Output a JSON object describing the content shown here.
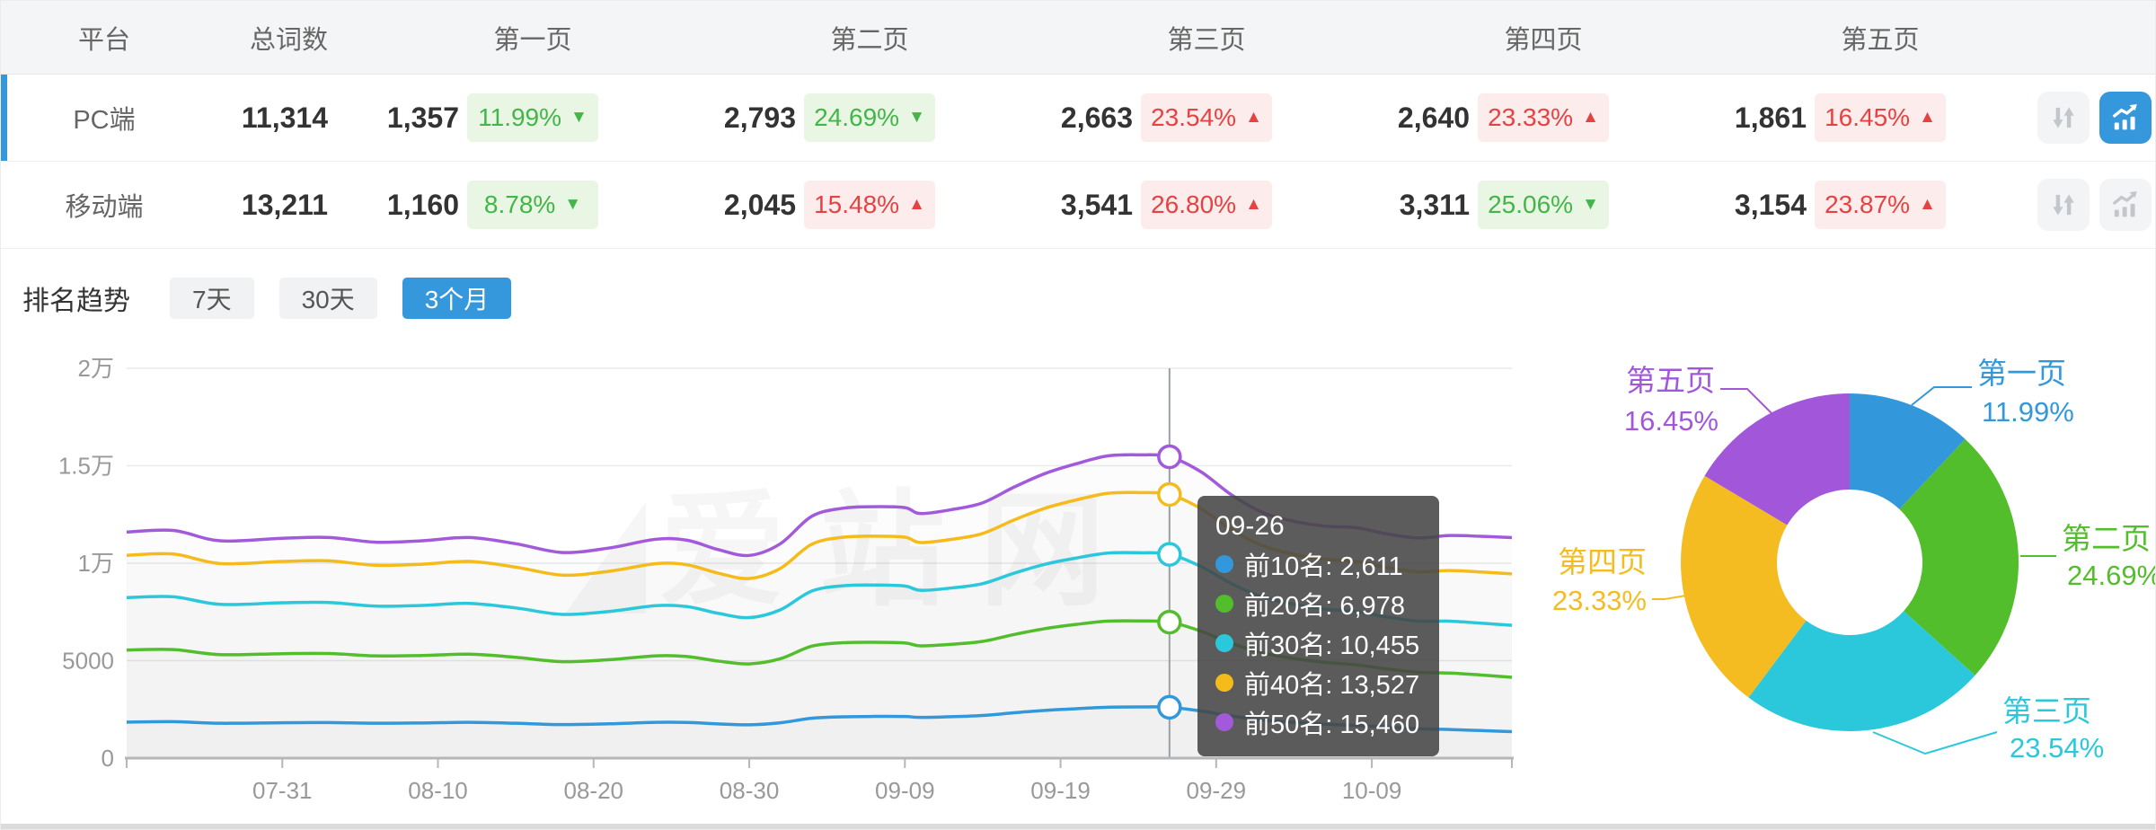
{
  "watermark": "爱站网",
  "table": {
    "headers": {
      "platform": "平台",
      "total": "总词数",
      "pages": [
        "第一页",
        "第二页",
        "第三页",
        "第四页",
        "第五页"
      ]
    },
    "rows": [
      {
        "platform": "PC端",
        "total": "11,314",
        "selected": true,
        "sort_active": false,
        "chart_active": true,
        "pages": [
          {
            "count": "1,357",
            "pct": "11.99%",
            "dir": "down"
          },
          {
            "count": "2,793",
            "pct": "24.69%",
            "dir": "down"
          },
          {
            "count": "2,663",
            "pct": "23.54%",
            "dir": "up"
          },
          {
            "count": "2,640",
            "pct": "23.33%",
            "dir": "up"
          },
          {
            "count": "1,861",
            "pct": "16.45%",
            "dir": "up"
          }
        ]
      },
      {
        "platform": "移动端",
        "total": "13,211",
        "selected": false,
        "sort_active": false,
        "chart_active": false,
        "pages": [
          {
            "count": "1,160",
            "pct": "8.78%",
            "dir": "down"
          },
          {
            "count": "2,045",
            "pct": "15.48%",
            "dir": "up"
          },
          {
            "count": "3,541",
            "pct": "26.80%",
            "dir": "up"
          },
          {
            "count": "3,311",
            "pct": "25.06%",
            "dir": "down"
          },
          {
            "count": "3,154",
            "pct": "23.87%",
            "dir": "up"
          }
        ]
      }
    ]
  },
  "trend": {
    "title": "排名趋势",
    "tabs": [
      {
        "key": "7d",
        "label": "7天",
        "active": false
      },
      {
        "key": "30d",
        "label": "30天",
        "active": false
      },
      {
        "key": "3m",
        "label": "3个月",
        "active": true
      }
    ]
  },
  "chart_data": [
    {
      "type": "line",
      "title": "排名趋势",
      "x": [
        "07-21",
        "07-24",
        "07-27",
        "07-31",
        "08-03",
        "08-06",
        "08-09",
        "08-12",
        "08-15",
        "08-18",
        "08-21",
        "08-24",
        "08-26",
        "08-28",
        "08-30",
        "09-01",
        "09-03",
        "09-05",
        "09-07",
        "09-09",
        "09-10",
        "09-12",
        "09-14",
        "09-16",
        "09-18",
        "09-20",
        "09-22",
        "09-24",
        "09-26",
        "09-28",
        "09-30",
        "10-02",
        "10-04",
        "10-06",
        "10-08",
        "10-10",
        "10-12",
        "10-14",
        "10-16",
        "10-18"
      ],
      "xticks": [
        "07-31",
        "08-10",
        "08-20",
        "08-30",
        "09-09",
        "09-19",
        "09-29",
        "10-09"
      ],
      "ylim": [
        0,
        20000
      ],
      "yticks": [
        {
          "v": 0,
          "label": "0"
        },
        {
          "v": 5000,
          "label": "5000"
        },
        {
          "v": 10000,
          "label": "1万"
        },
        {
          "v": 15000,
          "label": "1.5万"
        },
        {
          "v": 20000,
          "label": "2万"
        }
      ],
      "grid": true,
      "highlight_x": "09-26",
      "series": [
        {
          "key": "top10",
          "name": "前10名",
          "color": "#3398db",
          "values": [
            1850,
            1870,
            1790,
            1815,
            1825,
            1790,
            1805,
            1835,
            1790,
            1720,
            1760,
            1835,
            1830,
            1755,
            1710,
            1815,
            2045,
            2120,
            2140,
            2135,
            2090,
            2125,
            2190,
            2325,
            2450,
            2535,
            2610,
            2625,
            2611,
            2420,
            2160,
            1960,
            1835,
            1745,
            1680,
            1585,
            1505,
            1470,
            1415,
            1357
          ]
        },
        {
          "key": "top20",
          "name": "前20名",
          "color": "#52be2b",
          "values": [
            5545,
            5570,
            5310,
            5360,
            5370,
            5245,
            5265,
            5335,
            5175,
            4950,
            5050,
            5250,
            5215,
            4980,
            4835,
            5100,
            5740,
            5920,
            5945,
            5910,
            5760,
            5840,
            5990,
            6340,
            6645,
            6860,
            7025,
            7040,
            6978,
            6520,
            5885,
            5395,
            5110,
            4915,
            4790,
            4570,
            4405,
            4365,
            4265,
            4150
          ]
        },
        {
          "key": "top30",
          "name": "前30名",
          "color": "#2bc8dc",
          "values": [
            8235,
            8280,
            7890,
            7970,
            7985,
            7800,
            7835,
            7940,
            7705,
            7375,
            7525,
            7825,
            7775,
            7430,
            7210,
            7610,
            8565,
            8840,
            8880,
            8830,
            8610,
            8730,
            8955,
            9485,
            9945,
            10265,
            10520,
            10540,
            10455,
            9840,
            8945,
            8265,
            7890,
            7645,
            7515,
            7235,
            7030,
            7030,
            6925,
            6813
          ]
        },
        {
          "key": "top40",
          "name": "前40名",
          "color": "#f5bb1a",
          "values": [
            10405,
            10470,
            9985,
            10090,
            10120,
            9895,
            9950,
            10090,
            9800,
            9390,
            9585,
            9975,
            9920,
            9490,
            9215,
            9735,
            10965,
            11330,
            11390,
            11335,
            11060,
            11225,
            11525,
            12215,
            12820,
            13245,
            13585,
            13625,
            13527,
            12810,
            11715,
            10890,
            10455,
            10200,
            10085,
            9775,
            9560,
            9625,
            9550,
            9453
          ]
        },
        {
          "key": "top50",
          "name": "前50名",
          "color": "#a25adb",
          "values": [
            11600,
            11680,
            11150,
            11280,
            11320,
            11080,
            11150,
            11320,
            11000,
            10550,
            10780,
            11230,
            11180,
            10700,
            10400,
            11000,
            12400,
            12820,
            12900,
            12850,
            12550,
            12750,
            13100,
            13900,
            14600,
            15100,
            15500,
            15560,
            15460,
            14700,
            13500,
            12600,
            12150,
            11900,
            11820,
            11500,
            11300,
            11420,
            11380,
            11314
          ]
        }
      ],
      "tooltip": {
        "date": "09-26",
        "rows": [
          {
            "label": "前10名",
            "value": "2,611"
          },
          {
            "label": "前20名",
            "value": "6,978"
          },
          {
            "label": "前30名",
            "value": "10,455"
          },
          {
            "label": "前40名",
            "value": "13,527"
          },
          {
            "label": "前50名",
            "value": "15,460"
          }
        ]
      }
    },
    {
      "type": "pie",
      "inner_radius_ratio": 0.43,
      "slices": [
        {
          "key": "page1",
          "label": "第一页",
          "pct": 11.99,
          "color": "#3398db"
        },
        {
          "key": "page2",
          "label": "第二页",
          "pct": 24.69,
          "color": "#52be2b"
        },
        {
          "key": "page3",
          "label": "第三页",
          "pct": 23.54,
          "color": "#2bc8dc"
        },
        {
          "key": "page4",
          "label": "第四页",
          "pct": 23.33,
          "color": "#f5bc22"
        },
        {
          "key": "page5",
          "label": "第五页",
          "pct": 16.45,
          "color": "#a257db"
        }
      ]
    }
  ]
}
